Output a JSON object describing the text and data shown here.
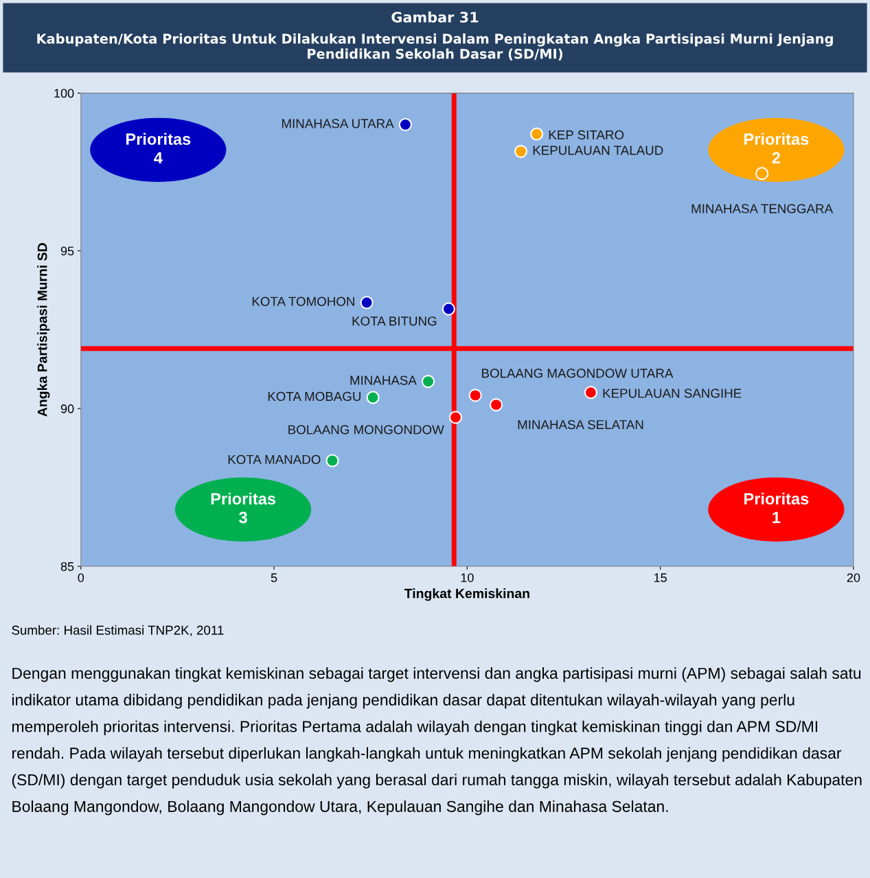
{
  "chart_data": {
    "type": "scatter",
    "title": "Gambar 31",
    "subtitle": "Kabupaten/Kota Prioritas Untuk Dilakukan Intervensi Dalam Peningkatan Angka Partisipasi Murni Jenjang Pendidikan Sekolah Dasar (SD/MI)",
    "xlabel": "Tingkat Kemiskinan",
    "ylabel": "Angka Partisipasi Murni SD",
    "xlim": [
      0,
      20
    ],
    "xticks": [
      0,
      5,
      10,
      15,
      20
    ],
    "ylim": [
      85,
      100
    ],
    "yticks": [
      85,
      90,
      95,
      100
    ],
    "grid": false,
    "marker": "circle",
    "series": [
      {
        "color": "#0000c0",
        "x": [
          8.4,
          7.4,
          9.52
        ],
        "values": [
          99.0,
          93.36,
          93.16
        ]
      },
      {
        "color": "#ffa500",
        "x": [
          11.8,
          11.39,
          17.63
        ],
        "values": [
          98.7,
          98.15,
          97.45
        ]
      },
      {
        "color": "#00b050",
        "x": [
          8.99,
          7.56,
          6.51
        ],
        "values": [
          90.86,
          90.35,
          88.35
        ]
      },
      {
        "color": "#ff0000",
        "x": [
          10.21,
          13.2,
          10.75,
          9.7
        ],
        "values": [
          90.42,
          90.51,
          90.12,
          89.72
        ]
      }
    ],
    "ref_lines": [
      {
        "axis": "x",
        "value": 9.66,
        "color": "#ff0000"
      },
      {
        "axis": "y",
        "value": 91.9,
        "color": "#ff0000"
      }
    ],
    "annotations": [
      {
        "text": "MINAHASA UTARA",
        "x": 8.4,
        "y": 99.0
      },
      {
        "text": "KEP SITARO",
        "x": 11.8,
        "y": 98.7
      },
      {
        "text": "KEPULAUAN TALAUD",
        "x": 11.39,
        "y": 98.15
      },
      {
        "text": "MINAHASA TENGGARA",
        "x": 17.63,
        "y": 97.45
      },
      {
        "text": "KOTA TOMOHON",
        "x": 7.4,
        "y": 93.36
      },
      {
        "text": "KOTA BITUNG",
        "x": 9.52,
        "y": 93.16
      },
      {
        "text": "MINAHASA",
        "x": 8.99,
        "y": 90.86
      },
      {
        "text": "KOTA MOBAGU",
        "x": 7.56,
        "y": 90.35
      },
      {
        "text": "KOTA MANADO",
        "x": 6.51,
        "y": 88.35
      },
      {
        "text": "BOLAANG MAGONDOW UTARA",
        "x": 10.21,
        "y": 90.42
      },
      {
        "text": "KEPULAUAN SANGIHE",
        "x": 13.2,
        "y": 90.51
      },
      {
        "text": "MINAHASA SELATAN",
        "x": 10.75,
        "y": 90.12
      },
      {
        "text": "BOLAANG MONGONDOW",
        "x": 9.7,
        "y": 89.72
      },
      "Prioritas\n4",
      "Prioritas\n2",
      "Prioritas\n3",
      "Prioritas\n1",
      "Sumber: Hasil Estimasi TNP2K, 2011",
      "Dengan menggunakan tingkat kemiskinan sebagai target intervensi dan angka partisipasi murni (APM) sebagai salah satu indikator utama dibidang pendidikan pada jenjang pendidikan dasar dapat ditentukan wilayah-wilayah yang perlu memperoleh prioritas intervensi. Prioritas Pertama adalah wilayah dengan tingkat kemiskinan tinggi dan APM SD/MI rendah. Pada wilayah tersebut diperlukan langkah-langkah untuk meningkatkan APM sekolah jenjang pendidikan dasar (SD/MI) dengan target penduduk usia sekolah yang berasal dari rumah tangga miskin, wilayah tersebut adalah Kabupaten Bolaang Mangondow, Bolaang Mangondow Utara, Kepulauan Sangihe dan Minahasa Selatan."
    ]
  }
}
